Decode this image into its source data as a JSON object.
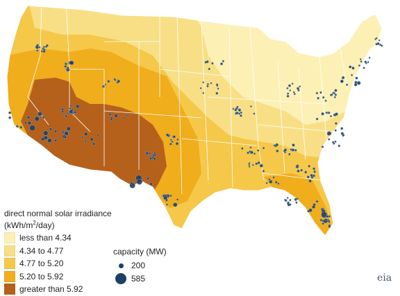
{
  "legend": {
    "title_line1": "direct normal solar irradiance",
    "units_prefix": "(kWh/m",
    "units_sup": "2",
    "units_suffix": "/day)",
    "classes": [
      {
        "label": "less than 4.34",
        "color": "#fcf0b4"
      },
      {
        "label": "4.34 to 4.77",
        "color": "#f8df86"
      },
      {
        "label": "4.77 to 5.20",
        "color": "#f5c84a"
      },
      {
        "label": "5.20 to 5.92",
        "color": "#f0ad1c"
      },
      {
        "label": "greater than 5.92",
        "color": "#b5611c"
      }
    ]
  },
  "capacity_legend": {
    "title": "capacity (MW)",
    "items": [
      {
        "label": "200"
      },
      {
        "label": "585"
      }
    ]
  },
  "colors": {
    "plant_dot": "#1e3f66",
    "plant_dot_outline": "#8ea6bf",
    "state_borders": "#ffffff"
  },
  "logo": {
    "text": "eia"
  }
}
